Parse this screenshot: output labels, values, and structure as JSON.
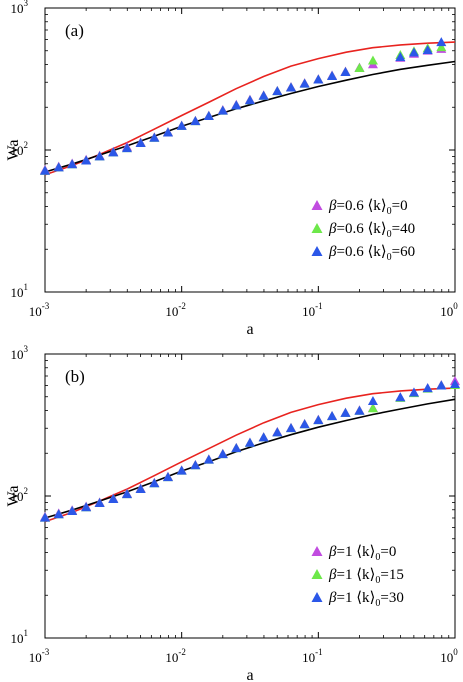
{
  "chart_data": [
    {
      "type": "scatter",
      "panel_label": "(a)",
      "xlabel": "a",
      "ylabel": "Wa",
      "xscale": "log",
      "yscale": "log",
      "xlim": [
        0.001,
        1
      ],
      "ylim": [
        10,
        1000
      ],
      "x_ticks": [
        {
          "value": 0.001,
          "base": "10",
          "exp": "-3"
        },
        {
          "value": 0.01,
          "base": "10",
          "exp": "-2"
        },
        {
          "value": 0.1,
          "base": "10",
          "exp": "-1"
        },
        {
          "value": 1,
          "base": "10",
          "exp": "0"
        }
      ],
      "y_ticks": [
        {
          "value": 10,
          "base": "10",
          "exp": "1"
        },
        {
          "value": 100,
          "base": "10",
          "exp": "2"
        },
        {
          "value": 1000,
          "base": "10",
          "exp": "3"
        }
      ],
      "grid": false,
      "legend_position": "bottom-right",
      "curves": [
        {
          "color": "#e8231f",
          "x": [
            0.001,
            0.0016,
            0.0025,
            0.004,
            0.0063,
            0.01,
            0.016,
            0.025,
            0.04,
            0.063,
            0.1,
            0.16,
            0.25,
            0.4,
            0.63,
            1
          ],
          "y": [
            67,
            78,
            93,
            113,
            140,
            175,
            218,
            270,
            330,
            390,
            440,
            488,
            525,
            550,
            565,
            575
          ]
        },
        {
          "color": "#000000",
          "x": [
            0.001,
            0.0016,
            0.0025,
            0.004,
            0.0063,
            0.01,
            0.016,
            0.025,
            0.04,
            0.063,
            0.1,
            0.16,
            0.25,
            0.4,
            0.63,
            1
          ],
          "y": [
            70,
            80,
            92,
            107,
            125,
            147,
            170,
            195,
            222,
            250,
            280,
            310,
            340,
            370,
            395,
            420
          ]
        }
      ],
      "series": [
        {
          "beta": "0.6",
          "k0": "0",
          "color": "#c14ce0",
          "x": [
            0.001,
            0.00126,
            0.00158,
            0.002,
            0.00251,
            0.00316,
            0.00398,
            0.00501,
            0.00631,
            0.00794,
            0.01,
            0.0126,
            0.0158,
            0.02,
            0.0251,
            0.0316,
            0.0398,
            0.0501,
            0.0631,
            0.0794,
            0.1,
            0.126,
            0.158,
            0.2,
            0.251,
            0.398,
            0.501,
            0.631,
            0.794
          ],
          "y": [
            73,
            77,
            81,
            86,
            92,
            98,
            106,
            114,
            124,
            135,
            150,
            162,
            176,
            193,
            210,
            228,
            245,
            263,
            280,
            298,
            318,
            338,
            360,
            383,
            405,
            450,
            480,
            505,
            520
          ]
        },
        {
          "beta": "0.6",
          "k0": "40",
          "color": "#6de84a",
          "x": [
            0.001,
            0.00126,
            0.00158,
            0.002,
            0.00251,
            0.00316,
            0.00398,
            0.00501,
            0.00631,
            0.00794,
            0.01,
            0.0126,
            0.0158,
            0.02,
            0.0251,
            0.0316,
            0.0398,
            0.0501,
            0.0631,
            0.0794,
            0.1,
            0.126,
            0.158,
            0.2,
            0.251,
            0.398,
            0.501,
            0.631,
            0.794
          ],
          "y": [
            72,
            76,
            80,
            85,
            91,
            97,
            104,
            113,
            123,
            134,
            149,
            161,
            175,
            191,
            208,
            226,
            243,
            262,
            278,
            296,
            316,
            335,
            357,
            381,
            430,
            470,
            500,
            525,
            535
          ]
        },
        {
          "beta": "0.6",
          "k0": "60",
          "color": "#2b57e8",
          "x": [
            0.001,
            0.00126,
            0.00158,
            0.002,
            0.00251,
            0.00316,
            0.00398,
            0.00501,
            0.00631,
            0.00794,
            0.01,
            0.0126,
            0.0158,
            0.02,
            0.0251,
            0.0316,
            0.0398,
            0.0501,
            0.0631,
            0.0794,
            0.1,
            0.126,
            0.158,
            0.398,
            0.501,
            0.631,
            0.794
          ],
          "y": [
            72,
            76,
            80,
            85,
            91,
            97,
            104,
            113,
            123,
            134,
            149,
            161,
            175,
            191,
            208,
            226,
            243,
            262,
            278,
            296,
            316,
            335,
            357,
            455,
            490,
            510,
            580
          ]
        }
      ]
    },
    {
      "type": "scatter",
      "panel_label": "(b)",
      "xlabel": "a",
      "ylabel": "Wa",
      "xscale": "log",
      "yscale": "log",
      "xlim": [
        0.001,
        1
      ],
      "ylim": [
        10,
        1000
      ],
      "x_ticks": [
        {
          "value": 0.001,
          "base": "10",
          "exp": "-3"
        },
        {
          "value": 0.01,
          "base": "10",
          "exp": "-2"
        },
        {
          "value": 0.1,
          "base": "10",
          "exp": "-1"
        },
        {
          "value": 1,
          "base": "10",
          "exp": "0"
        }
      ],
      "y_ticks": [
        {
          "value": 10,
          "base": "10",
          "exp": "1"
        },
        {
          "value": 100,
          "base": "10",
          "exp": "2"
        },
        {
          "value": 1000,
          "base": "10",
          "exp": "3"
        }
      ],
      "grid": false,
      "legend_position": "bottom-right",
      "curves": [
        {
          "color": "#e8231f",
          "x": [
            0.001,
            0.0016,
            0.0025,
            0.004,
            0.0063,
            0.01,
            0.016,
            0.025,
            0.04,
            0.063,
            0.1,
            0.16,
            0.25,
            0.4,
            0.63,
            1
          ],
          "y": [
            66,
            77,
            92,
            112,
            139,
            174,
            217,
            268,
            328,
            388,
            440,
            488,
            525,
            550,
            565,
            575
          ]
        },
        {
          "color": "#000000",
          "x": [
            0.001,
            0.0016,
            0.0025,
            0.004,
            0.0063,
            0.01,
            0.016,
            0.025,
            0.04,
            0.063,
            0.1,
            0.16,
            0.25,
            0.4,
            0.63,
            1
          ],
          "y": [
            70,
            80,
            92,
            107,
            126,
            150,
            175,
            205,
            237,
            270,
            305,
            340,
            375,
            410,
            445,
            480
          ]
        }
      ],
      "series": [
        {
          "beta": "1",
          "k0": "0",
          "color": "#c14ce0",
          "x": [
            0.001,
            0.00126,
            0.00158,
            0.002,
            0.00251,
            0.00316,
            0.00398,
            0.00501,
            0.00631,
            0.00794,
            0.01,
            0.0126,
            0.0158,
            0.02,
            0.0251,
            0.0316,
            0.0398,
            0.0501,
            0.0631,
            0.0794,
            0.1,
            0.126,
            0.158,
            0.2,
            0.251,
            0.398,
            0.501,
            0.631,
            0.794,
            1
          ],
          "y": [
            72,
            76,
            80,
            85,
            91,
            97,
            105,
            114,
            125,
            138,
            153,
            167,
            183,
            200,
            220,
            240,
            262,
            285,
            305,
            325,
            348,
            370,
            390,
            405,
            420,
            500,
            540,
            580,
            610,
            650
          ]
        },
        {
          "beta": "1",
          "k0": "15",
          "color": "#6de84a",
          "x": [
            0.001,
            0.00126,
            0.00158,
            0.002,
            0.00251,
            0.00316,
            0.00398,
            0.00501,
            0.00631,
            0.00794,
            0.01,
            0.0126,
            0.0158,
            0.02,
            0.0251,
            0.0316,
            0.0398,
            0.0501,
            0.0631,
            0.0794,
            0.1,
            0.126,
            0.158,
            0.2,
            0.251,
            0.398,
            0.501,
            0.631,
            0.794,
            1
          ],
          "y": [
            71,
            75,
            79,
            84,
            90,
            96,
            104,
            113,
            124,
            137,
            152,
            166,
            182,
            199,
            219,
            239,
            261,
            283,
            303,
            323,
            345,
            368,
            388,
            402,
            418,
            495,
            535,
            575,
            605,
            610
          ]
        },
        {
          "beta": "1",
          "k0": "30",
          "color": "#2b57e8",
          "x": [
            0.001,
            0.00126,
            0.00158,
            0.002,
            0.00251,
            0.00316,
            0.00398,
            0.00501,
            0.00631,
            0.00794,
            0.01,
            0.0126,
            0.0158,
            0.02,
            0.0251,
            0.0316,
            0.0398,
            0.0501,
            0.0631,
            0.0794,
            0.1,
            0.126,
            0.158,
            0.2,
            0.251,
            0.398,
            0.501,
            0.631,
            0.794,
            1
          ],
          "y": [
            71,
            75,
            79,
            84,
            90,
            96,
            104,
            113,
            124,
            137,
            152,
            166,
            182,
            199,
            219,
            239,
            261,
            283,
            303,
            323,
            345,
            368,
            388,
            402,
            470,
            500,
            540,
            580,
            605,
            620
          ]
        }
      ]
    }
  ]
}
